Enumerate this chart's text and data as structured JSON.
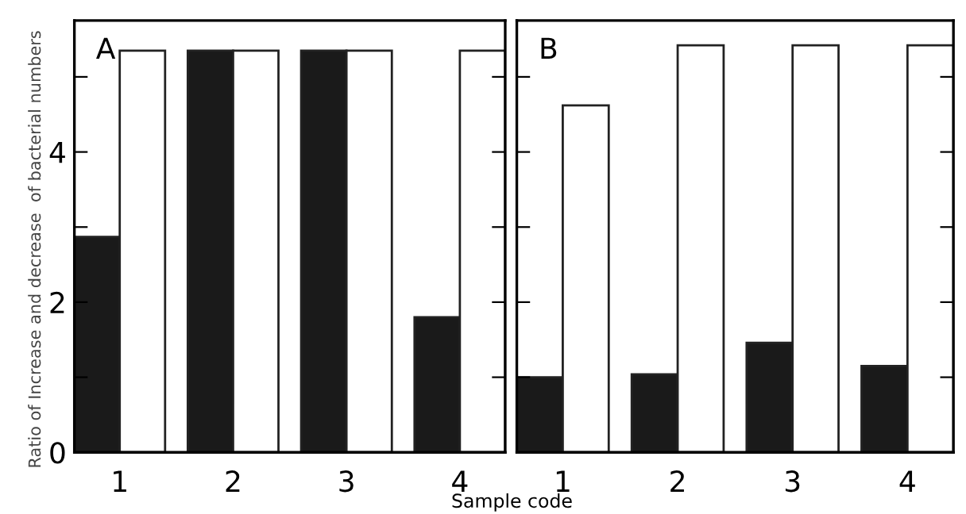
{
  "chart_data": [
    {
      "type": "bar",
      "categories": [
        "1",
        "2",
        "3",
        "4"
      ],
      "ylabel": "Ratio of Increase and decrease  of bacterial numbers",
      "xlabel": "Sample code",
      "annotations": [
        "A"
      ],
      "series": [
        {
          "color": "#1a1a1a",
          "values": [
            2.87,
            5.35,
            5.35,
            1.8
          ]
        },
        {
          "color": "#ffffff",
          "values": [
            5.35,
            5.35,
            5.35,
            5.35
          ]
        }
      ],
      "ylim": [
        0,
        5.75
      ],
      "yticks": [
        0,
        {
          "value": 1,
          "label": null
        },
        2,
        {
          "value": 3,
          "label": null
        },
        4,
        {
          "value": 5,
          "label": null
        }
      ],
      "grid": false,
      "legend": false
    },
    {
      "type": "bar",
      "categories": [
        "1",
        "2",
        "3",
        "4"
      ],
      "annotations": [
        "B"
      ],
      "series": [
        {
          "color": "#1a1a1a",
          "values": [
            1.0,
            1.04,
            1.46,
            1.15
          ]
        },
        {
          "color": "#ffffff",
          "values": [
            4.62,
            5.42,
            5.42,
            5.42
          ]
        }
      ],
      "ylim": [
        0,
        5.75
      ],
      "yticks": [
        0,
        {
          "value": 1,
          "label": null
        },
        2,
        {
          "value": 3,
          "label": null
        },
        4,
        {
          "value": 5,
          "label": null
        }
      ],
      "tick_labels": "x",
      "grid": false,
      "legend": false
    }
  ]
}
